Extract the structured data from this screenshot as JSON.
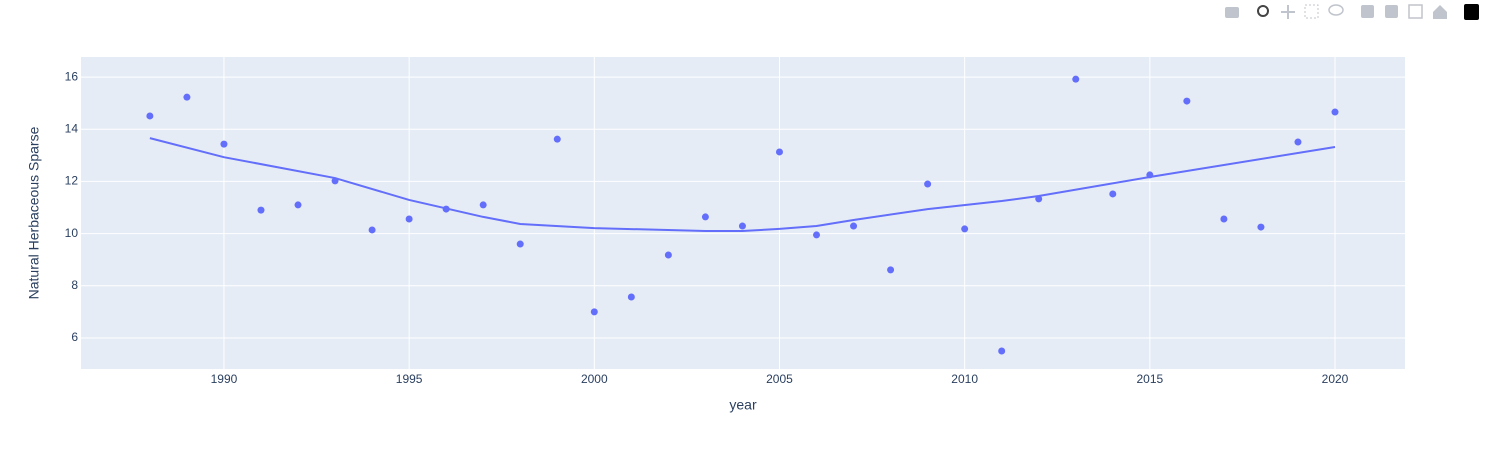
{
  "chart_data": {
    "type": "scatter",
    "x_label": "year",
    "y_label": "Natural Herbaceous Sparse",
    "xlim": [
      1986.14,
      2021.89
    ],
    "xticks": [
      1990,
      1995,
      2000,
      2005,
      2010,
      2015,
      2020
    ],
    "ylim": [
      4.81,
      16.77
    ],
    "yticks": [
      6,
      8,
      10,
      12,
      14,
      16
    ],
    "grid": true,
    "plot_background": "#e5ecf6",
    "series": [
      {
        "mode": "markers",
        "color": "#636efa",
        "x": [
          1988,
          1989,
          1990,
          1991,
          1992,
          1993,
          1994,
          1995,
          1996,
          1997,
          1998,
          1999,
          2000,
          2001,
          2002,
          2003,
          2004,
          2005,
          2006,
          2007,
          2008,
          2009,
          2010,
          2011,
          2012,
          2013,
          2014,
          2015,
          2016,
          2017,
          2018,
          2019,
          2020
        ],
        "values": [
          14.51,
          15.23,
          13.43,
          10.9,
          11.1,
          12.02,
          10.14,
          10.56,
          10.94,
          11.1,
          9.6,
          13.62,
          7.0,
          7.57,
          9.18,
          10.64,
          10.29,
          13.13,
          9.95,
          10.29,
          8.61,
          11.9,
          10.18,
          5.5,
          11.33,
          15.92,
          11.52,
          12.25,
          15.08,
          10.56,
          10.25,
          13.51,
          14.66
        ]
      },
      {
        "mode": "lines",
        "color": "#636efa",
        "x": [
          1988,
          1990,
          1993,
          1995,
          1997,
          1998,
          2000,
          2003,
          2004,
          2005,
          2006,
          2007,
          2009,
          2011,
          2012,
          2015,
          2020
        ],
        "values": [
          13.66,
          12.93,
          12.13,
          11.29,
          10.64,
          10.37,
          10.21,
          10.1,
          10.1,
          10.18,
          10.29,
          10.52,
          10.94,
          11.25,
          11.44,
          12.17,
          13.32
        ]
      }
    ]
  }
}
